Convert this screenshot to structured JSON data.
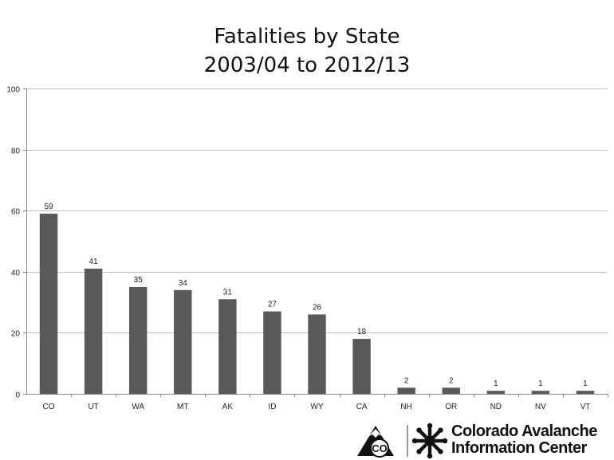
{
  "chart_data": {
    "type": "bar",
    "title": "Fatalities by State",
    "subtitle": "2003/04 to 2012/13",
    "categories": [
      "CO",
      "UT",
      "WA",
      "MT",
      "AK",
      "ID",
      "WY",
      "CA",
      "NH",
      "OR",
      "ND",
      "NV",
      "VT"
    ],
    "values": [
      59,
      41,
      35,
      34,
      31,
      27,
      26,
      18,
      2,
      2,
      1,
      1,
      1
    ],
    "ylim": [
      0,
      100
    ],
    "yticks": [
      0,
      20,
      40,
      60,
      80,
      100
    ],
    "grid": true,
    "legend": "none",
    "bar_color": "#595959",
    "grid_color": "#bfbfbf"
  },
  "branding": {
    "logo_badge_text": "CO",
    "org_line1": "Colorado Avalanche",
    "org_line2": "Information Center"
  }
}
